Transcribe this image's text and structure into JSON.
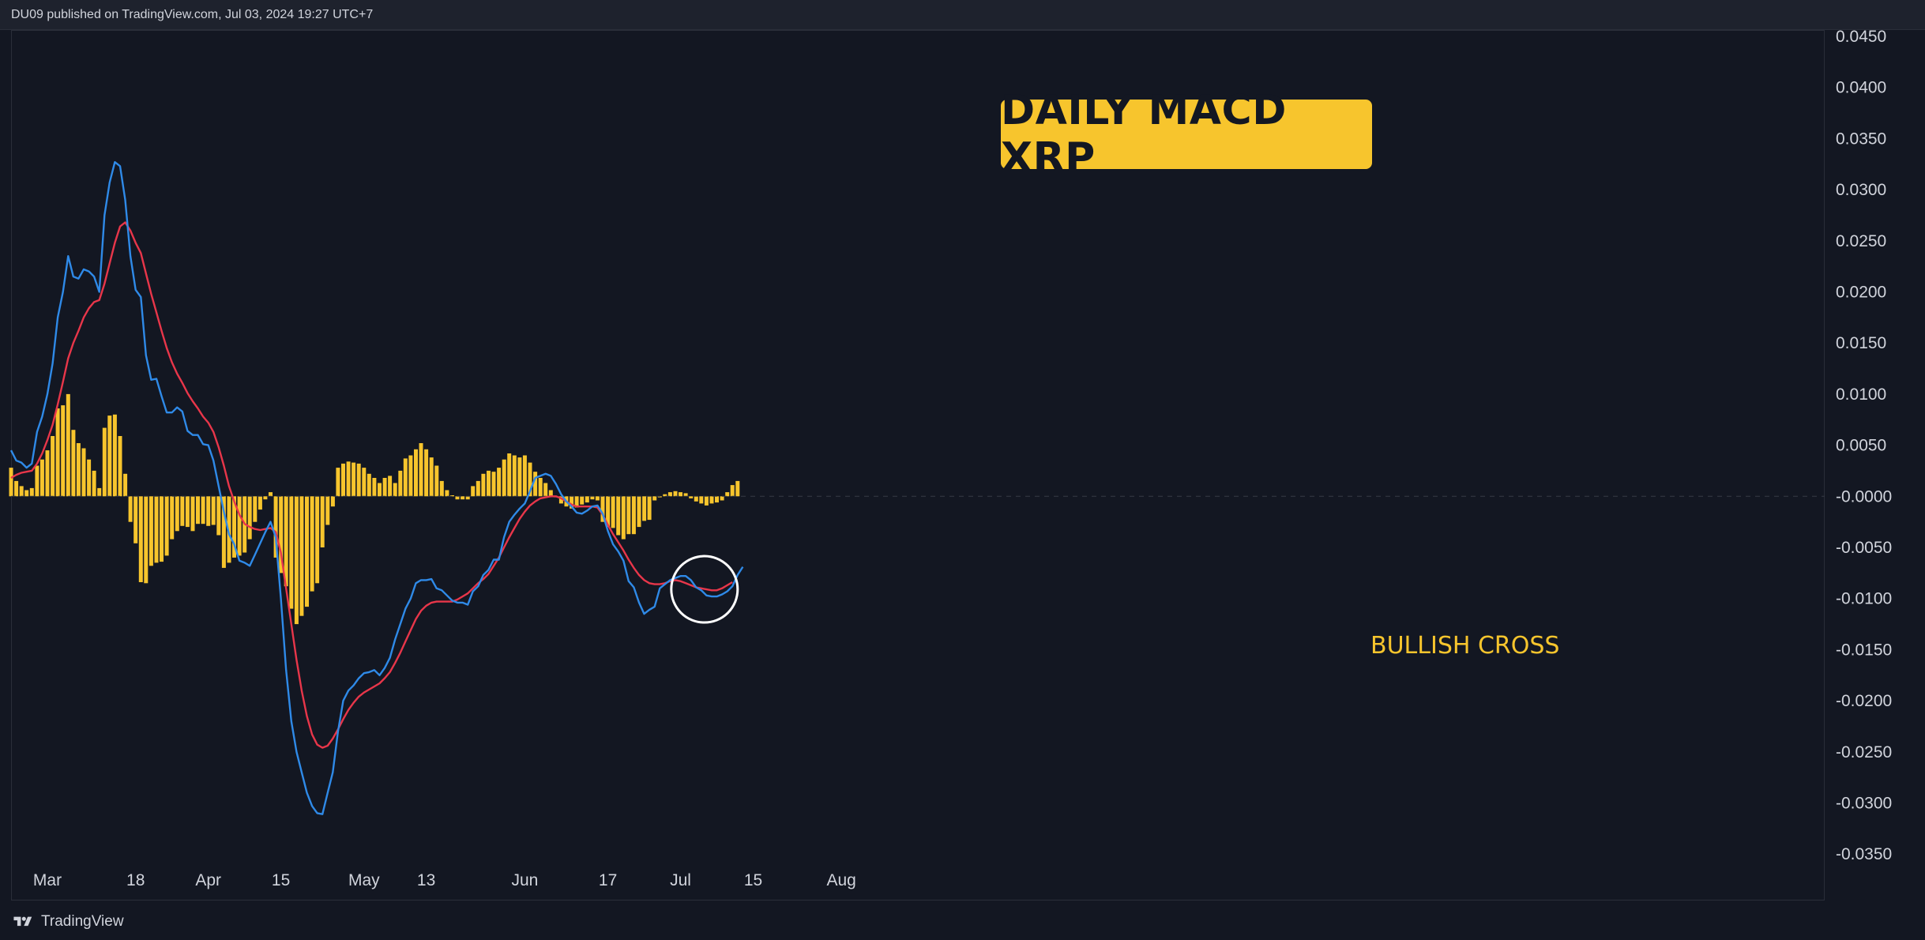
{
  "header": {
    "published": "DU09 published on TradingView.com, Jul 03, 2024 19:27 UTC+7"
  },
  "footer": {
    "brand": "TradingView"
  },
  "annotations": {
    "title": "DAILY MACD XRP",
    "cross_label": "BULLISH CROSS"
  },
  "colors": {
    "background": "#131722",
    "macd_line": "#2f8ae8",
    "signal_line": "#e8364a",
    "histogram": "#f7c52d",
    "title_box": "#f7c52d",
    "grid_text": "#d1d4dc"
  },
  "chart_data": {
    "type": "line",
    "title": "DAILY MACD XRP",
    "x_tick_labels": [
      "Mar",
      "18",
      "Apr",
      "15",
      "May",
      "13",
      "Jun",
      "17",
      "Jul",
      "15",
      "Aug"
    ],
    "x_tick_dates": [
      "2024-03-01",
      "2024-03-18",
      "2024-04-01",
      "2024-04-15",
      "2024-05-01",
      "2024-05-13",
      "2024-06-01",
      "2024-06-17",
      "2024-07-01",
      "2024-07-15",
      "2024-08-01"
    ],
    "y_tick_labels": [
      "0.0450",
      "0.0400",
      "0.0350",
      "0.0300",
      "0.0250",
      "0.0200",
      "0.0150",
      "0.0100",
      "0.0050",
      "-0.0000",
      "-0.0050",
      "-0.0100",
      "-0.0150",
      "-0.0200",
      "-0.0250",
      "-0.0300",
      "-0.0350"
    ],
    "ylim": [
      -0.035,
      0.045
    ],
    "x_start": "2024-02-23",
    "series": [
      {
        "name": "MACD",
        "color": "#2f8ae8",
        "values": [
          0.0045,
          0.0035,
          0.0033,
          0.0028,
          0.0032,
          0.0063,
          0.0078,
          0.01,
          0.013,
          0.0175,
          0.02,
          0.0235,
          0.0215,
          0.0213,
          0.0222,
          0.022,
          0.0215,
          0.02,
          0.0275,
          0.0307,
          0.0327,
          0.0323,
          0.029,
          0.0235,
          0.0202,
          0.0195,
          0.0138,
          0.0114,
          0.0115,
          0.0098,
          0.0082,
          0.0082,
          0.0087,
          0.0083,
          0.0064,
          0.006,
          0.006,
          0.0051,
          0.005,
          0.0035,
          0.001,
          -0.0015,
          -0.0037,
          -0.0047,
          -0.0063,
          -0.0065,
          -0.0068,
          -0.0057,
          -0.0046,
          -0.0035,
          -0.0025,
          -0.004,
          -0.01,
          -0.017,
          -0.022,
          -0.025,
          -0.027,
          -0.029,
          -0.0303,
          -0.031,
          -0.0311,
          -0.029,
          -0.027,
          -0.023,
          -0.02,
          -0.019,
          -0.0185,
          -0.0178,
          -0.0173,
          -0.0172,
          -0.017,
          -0.0175,
          -0.0168,
          -0.0158,
          -0.014,
          -0.0125,
          -0.011,
          -0.01,
          -0.0085,
          -0.0082,
          -0.0082,
          -0.0081,
          -0.009,
          -0.0092,
          -0.0097,
          -0.0102,
          -0.0104,
          -0.0104,
          -0.0106,
          -0.0093,
          -0.0088,
          -0.0077,
          -0.0072,
          -0.0062,
          -0.0062,
          -0.004,
          -0.0025,
          -0.0018,
          -0.0012,
          -0.0007,
          0.0005,
          0.0018,
          0.002,
          0.0022,
          0.002,
          0.0012,
          0.0002,
          -0.0005,
          -0.001,
          -0.0016,
          -0.0017,
          -0.0014,
          -0.001,
          -0.0009,
          -0.0017,
          -0.0034,
          -0.0047,
          -0.0054,
          -0.0063,
          -0.0083,
          -0.0089,
          -0.0104,
          -0.0115,
          -0.0111,
          -0.0108,
          -0.009,
          -0.0086,
          -0.0082,
          -0.008,
          -0.0078,
          -0.0078,
          -0.0082,
          -0.0089,
          -0.0092,
          -0.0097,
          -0.0098,
          -0.0098,
          -0.0096,
          -0.0093,
          -0.0088,
          -0.0077,
          -0.0069
        ]
      },
      {
        "name": "Signal",
        "color": "#e8364a",
        "values": [
          0.0018,
          0.0021,
          0.0023,
          0.0024,
          0.0025,
          0.0032,
          0.0042,
          0.0055,
          0.007,
          0.009,
          0.0112,
          0.0135,
          0.015,
          0.0162,
          0.0175,
          0.0184,
          0.019,
          0.0192,
          0.0208,
          0.0228,
          0.0248,
          0.0264,
          0.0268,
          0.026,
          0.0248,
          0.0238,
          0.0218,
          0.0198,
          0.018,
          0.0162,
          0.0145,
          0.0131,
          0.012,
          0.0111,
          0.0101,
          0.0093,
          0.0086,
          0.0078,
          0.0072,
          0.0063,
          0.0048,
          0.003,
          0.001,
          -0.0005,
          -0.0018,
          -0.0027,
          -0.003,
          -0.0032,
          -0.0033,
          -0.0032,
          -0.0031,
          -0.0035,
          -0.0055,
          -0.009,
          -0.0125,
          -0.016,
          -0.019,
          -0.0215,
          -0.0233,
          -0.0243,
          -0.0246,
          -0.0244,
          -0.0237,
          -0.0228,
          -0.0218,
          -0.0209,
          -0.0202,
          -0.0196,
          -0.0192,
          -0.0189,
          -0.0186,
          -0.0183,
          -0.0178,
          -0.0172,
          -0.0163,
          -0.0153,
          -0.0142,
          -0.0131,
          -0.012,
          -0.0112,
          -0.0107,
          -0.0104,
          -0.0103,
          -0.0103,
          -0.0103,
          -0.0103,
          -0.0101,
          -0.0098,
          -0.0095,
          -0.009,
          -0.0085,
          -0.0081,
          -0.0076,
          -0.0068,
          -0.006,
          -0.005,
          -0.004,
          -0.0031,
          -0.0022,
          -0.0015,
          -0.0009,
          -0.0005,
          -0.0002,
          -0.0001,
          0.0,
          0.0,
          -0.0002,
          -0.0005,
          -0.0008,
          -0.001,
          -0.001,
          -0.001,
          -0.001,
          -0.0011,
          -0.0018,
          -0.0028,
          -0.0037,
          -0.0045,
          -0.0053,
          -0.0062,
          -0.007,
          -0.0077,
          -0.0082,
          -0.0085,
          -0.0086,
          -0.0086,
          -0.0085,
          -0.0083,
          -0.0082,
          -0.0083,
          -0.0085,
          -0.0087,
          -0.0089,
          -0.009,
          -0.0091,
          -0.0092,
          -0.0092,
          -0.009,
          -0.0087,
          -0.0084
        ]
      },
      {
        "name": "Histogram",
        "type": "bar",
        "color": "#f7c52d",
        "values": [
          0.0028,
          0.0015,
          0.001,
          0.0006,
          0.0008,
          0.003,
          0.0036,
          0.0045,
          0.0059,
          0.0086,
          0.0089,
          0.01,
          0.0065,
          0.0052,
          0.0047,
          0.0036,
          0.0025,
          0.0008,
          0.0067,
          0.0079,
          0.008,
          0.0059,
          0.0022,
          -0.0025,
          -0.0046,
          -0.0084,
          -0.0085,
          -0.0068,
          -0.0065,
          -0.0064,
          -0.0058,
          -0.0042,
          -0.0034,
          -0.0029,
          -0.003,
          -0.0034,
          -0.0027,
          -0.0027,
          -0.0029,
          -0.0028,
          -0.0038,
          -0.007,
          -0.0065,
          -0.006,
          -0.0058,
          -0.0055,
          -0.0042,
          -0.0025,
          -0.0013,
          -0.0003,
          0.0004,
          -0.006,
          -0.0075,
          -0.0088,
          -0.011,
          -0.0125,
          -0.0117,
          -0.0108,
          -0.0093,
          -0.0085,
          -0.005,
          -0.0028,
          -0.001,
          0.0028,
          0.0032,
          0.0034,
          0.0033,
          0.0032,
          0.0028,
          0.0022,
          0.0018,
          0.0013,
          0.0018,
          0.002,
          0.0013,
          0.0025,
          0.0037,
          0.004,
          0.0046,
          0.0052,
          0.0046,
          0.0038,
          0.003,
          0.0015,
          0.0006,
          0.0001,
          -0.0003,
          -0.0003,
          -0.0003,
          0.001,
          0.0015,
          0.0022,
          0.0025,
          0.0024,
          0.0028,
          0.0036,
          0.0042,
          0.004,
          0.0038,
          0.004,
          0.0033,
          0.0024,
          0.0018,
          0.0013,
          0.0006,
          -0.0001,
          -0.0007,
          -0.001,
          -0.0012,
          -0.0011,
          -0.0008,
          -0.0006,
          -0.0003,
          -0.0004,
          -0.0025,
          -0.003,
          -0.0031,
          -0.0038,
          -0.0042,
          -0.0037,
          -0.0037,
          -0.003,
          -0.0024,
          -0.0023,
          -0.0004,
          -0.0001,
          0.0002,
          0.0004,
          0.0005,
          0.0004,
          0.0003,
          -0.0002,
          -0.0005,
          -0.0007,
          -0.0009,
          -0.0007,
          -0.0006,
          -0.0004,
          0.0004,
          0.0011,
          0.0015
        ]
      }
    ],
    "legend": "none",
    "grid": false
  }
}
